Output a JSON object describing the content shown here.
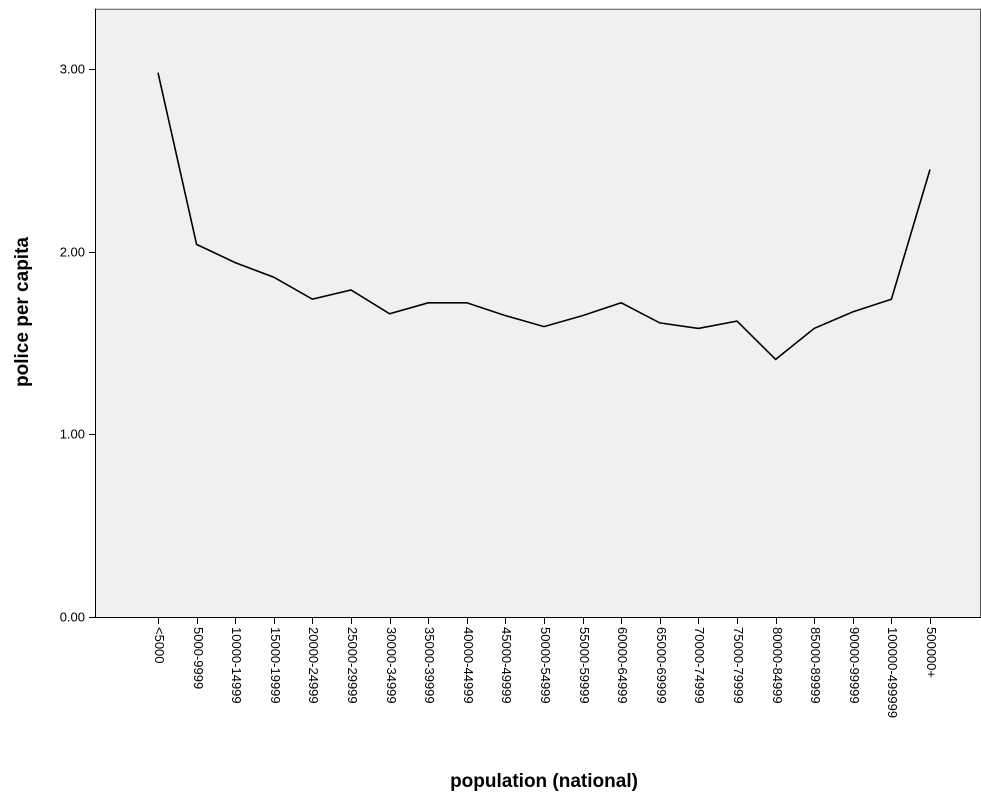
{
  "chart_data": {
    "type": "line",
    "title": "",
    "xlabel": "population (national)",
    "ylabel": "police per capita",
    "categories": [
      "<5000",
      "5000-9999",
      "10000-14999",
      "15000-19999",
      "20000-24999",
      "25000-29999",
      "30000-34999",
      "35000-39999",
      "40000-44999",
      "45000-49999",
      "50000-54999",
      "55000-59999",
      "60000-64999",
      "65000-69999",
      "70000-74999",
      "75000-79999",
      "80000-84999",
      "85000-89999",
      "90000-99999",
      "100000-499999",
      "500000+"
    ],
    "values": [
      2.98,
      2.04,
      1.94,
      1.86,
      1.74,
      1.79,
      1.66,
      1.72,
      1.72,
      1.65,
      1.59,
      1.65,
      1.72,
      1.61,
      1.58,
      1.62,
      1.41,
      1.58,
      1.67,
      1.74,
      2.45
    ],
    "ylim": [
      0,
      3.33
    ],
    "yticks": [
      0,
      1,
      2,
      3
    ],
    "ytick_labels": [
      "0.00",
      "1.00",
      "2.00",
      "3.00"
    ],
    "grid": false,
    "colors": {
      "plot_background": "#f0f0f0",
      "line": "#000000",
      "axis": "#000000",
      "frame": "#555555"
    }
  }
}
